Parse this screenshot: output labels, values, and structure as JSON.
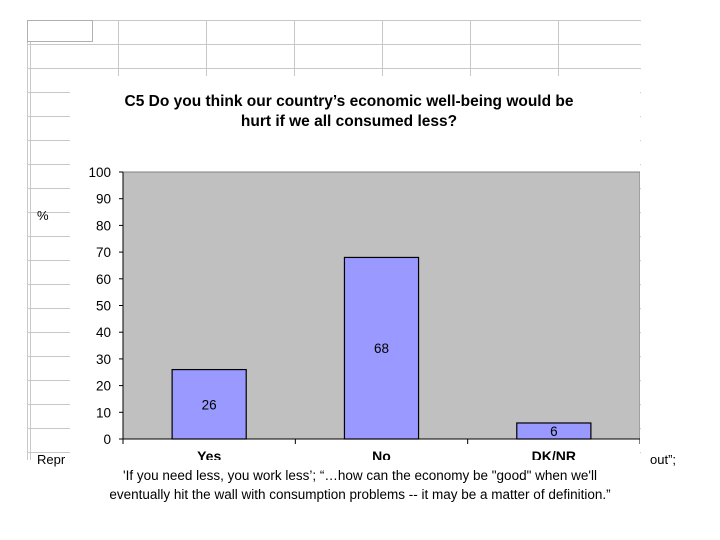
{
  "sheet": {
    "percent_label": "%"
  },
  "chart_data": {
    "type": "bar",
    "title_line1": "C5   Do you think our country’s economic well-being would be",
    "title_line2": "hurt if we all consumed less?",
    "categories": [
      "Yes",
      "No",
      "DK/NR"
    ],
    "values": [
      26,
      68,
      6
    ],
    "data_labels": [
      "26",
      "68",
      "6"
    ],
    "y_ticks": [
      "0",
      "10",
      "20",
      "30",
      "40",
      "50",
      "60",
      "70",
      "80",
      "90",
      "100"
    ],
    "ylim": [
      0,
      100
    ],
    "xlabel": "",
    "ylabel": "",
    "grid": false,
    "colors": {
      "bar": "#9999ff",
      "plot_area": "#c0c0c0",
      "bar_border": "#000000"
    }
  },
  "notes": {
    "partial_left": "Repr",
    "partial_right": "out”;",
    "line1": "'If you need less, you work less’; “…how can the economy be \"good\" when we'll",
    "line2": "eventually hit the wall with consumption problems -- it may be a matter of definition.”"
  }
}
